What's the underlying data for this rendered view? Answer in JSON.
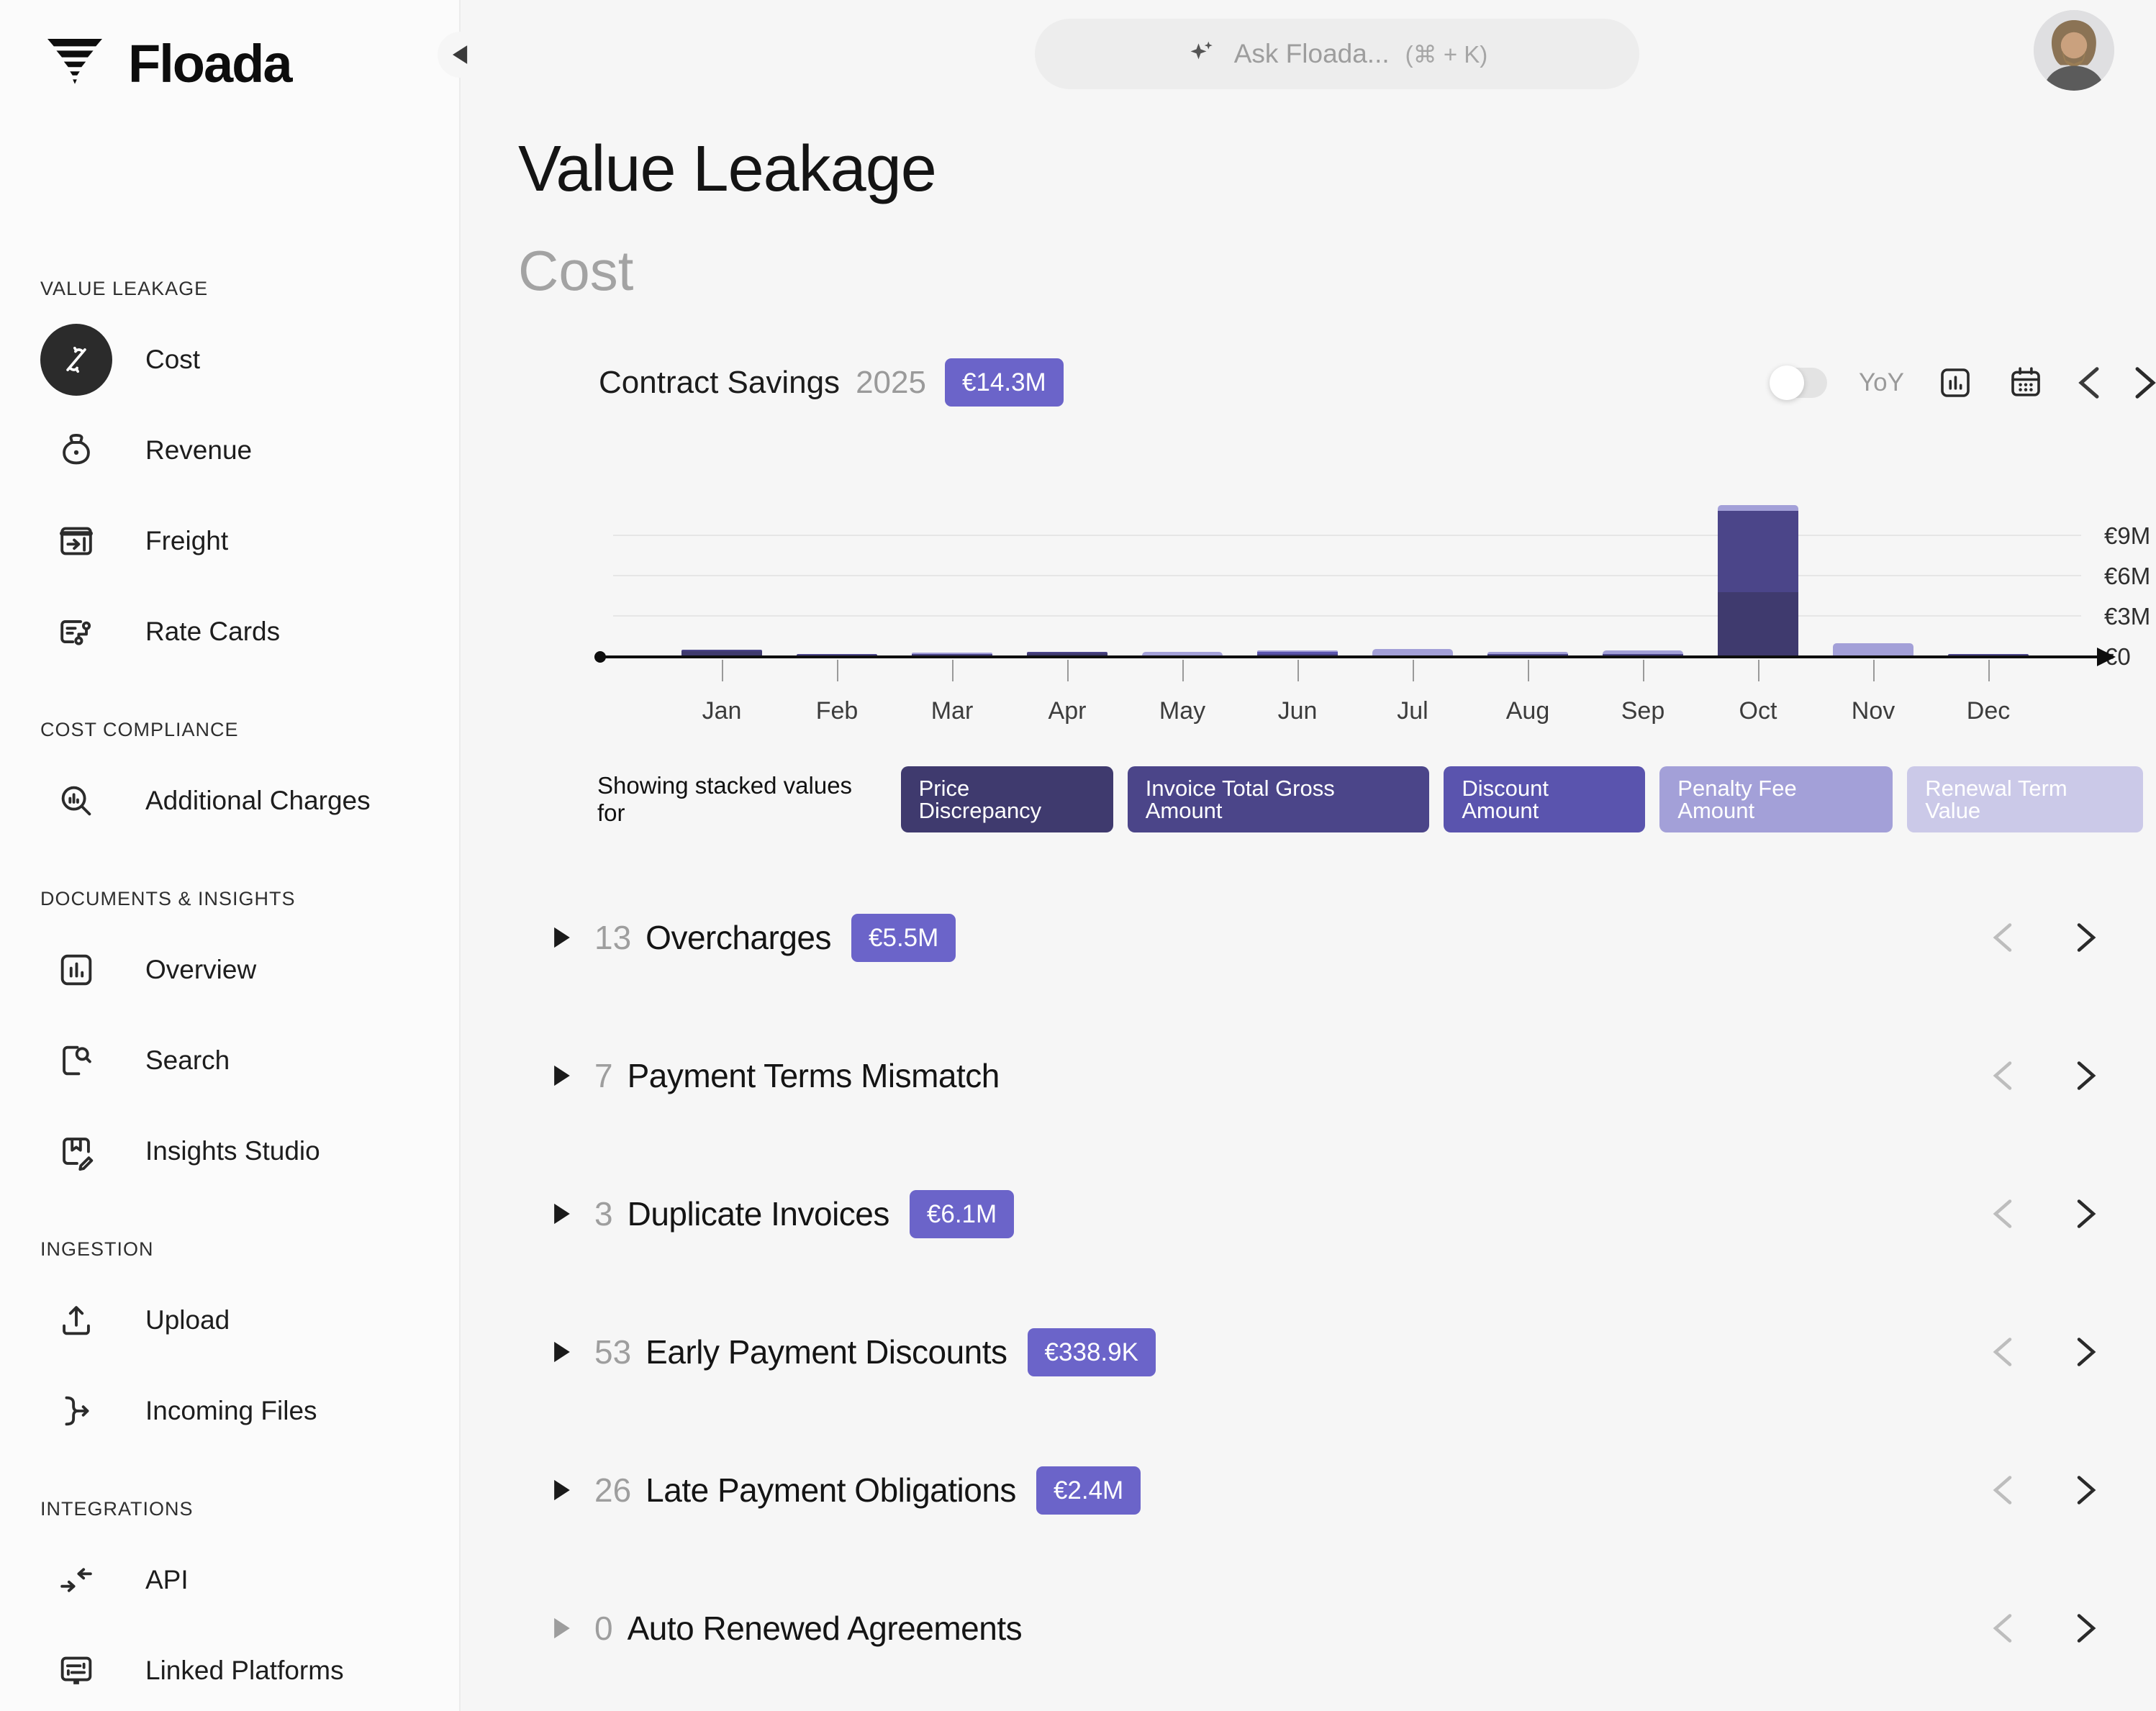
{
  "app": {
    "name": "Floada"
  },
  "topbar": {
    "ask_placeholder": "Ask Floada...",
    "shortcut": "(⌘ + K)"
  },
  "page": {
    "title": "Value Leakage",
    "subtitle": "Cost"
  },
  "sidebar": {
    "sections": [
      {
        "label": "VALUE LEAKAGE",
        "items": [
          {
            "label": "Cost",
            "icon": "cost-icon",
            "active": true
          },
          {
            "label": "Revenue",
            "icon": "revenue-icon"
          },
          {
            "label": "Freight",
            "icon": "freight-icon"
          },
          {
            "label": "Rate Cards",
            "icon": "rate-cards-icon"
          }
        ]
      },
      {
        "label": "COST COMPLIANCE",
        "items": [
          {
            "label": "Additional Charges",
            "icon": "additional-charges-icon"
          }
        ]
      },
      {
        "label": "DOCUMENTS & INSIGHTS",
        "items": [
          {
            "label": "Overview",
            "icon": "overview-icon"
          },
          {
            "label": "Search",
            "icon": "search-icon"
          },
          {
            "label": "Insights Studio",
            "icon": "insights-studio-icon"
          }
        ]
      },
      {
        "label": "INGESTION",
        "items": [
          {
            "label": "Upload",
            "icon": "upload-icon"
          },
          {
            "label": "Incoming Files",
            "icon": "incoming-files-icon"
          }
        ]
      },
      {
        "label": "INTEGRATIONS",
        "items": [
          {
            "label": "API",
            "icon": "api-icon"
          },
          {
            "label": "Linked Platforms",
            "icon": "linked-platforms-icon"
          }
        ]
      }
    ]
  },
  "chart_header": {
    "title": "Contract Savings",
    "year": "2025",
    "total_badge": "€14.3M",
    "yoy_label": "YoY"
  },
  "chart_data": {
    "type": "bar",
    "stacked": true,
    "title": "Contract Savings 2025",
    "unit": "€M",
    "categories": [
      "Jan",
      "Feb",
      "Mar",
      "Apr",
      "May",
      "Jun",
      "Jul",
      "Aug",
      "Sep",
      "Oct",
      "Nov",
      "Dec"
    ],
    "series": [
      {
        "name": "Price Discrepancy",
        "color": "#3f3a6e",
        "values": [
          0.3,
          0,
          0,
          0.15,
          0,
          0,
          0,
          0,
          0,
          4.7,
          0,
          0
        ]
      },
      {
        "name": "Invoice Total Gross Amount",
        "color": "#4b4589",
        "values": [
          0.05,
          0.02,
          0.03,
          0.05,
          0,
          0.05,
          0,
          0.05,
          0.05,
          6.05,
          0,
          0.02
        ]
      },
      {
        "name": "Discount Amount",
        "color": "#5a54ae",
        "values": [
          0,
          0,
          0,
          0,
          0,
          0.15,
          0,
          0,
          0,
          0,
          0,
          0
        ]
      },
      {
        "name": "Penalty Fee Amount",
        "color": "#a3a0d8",
        "values": [
          0,
          0,
          0.1,
          0,
          0.25,
          0.1,
          0.5,
          0.15,
          0.25,
          0.45,
          0.9,
          0
        ]
      },
      {
        "name": "Renewal Term Value",
        "color": "#cbc9e8",
        "values": [
          0,
          0,
          0,
          0,
          0,
          0,
          0,
          0,
          0,
          0,
          0,
          0
        ]
      }
    ],
    "yticks": [
      {
        "label": "€0",
        "value": 0
      },
      {
        "label": "€3M",
        "value": 3
      },
      {
        "label": "€6M",
        "value": 6
      },
      {
        "label": "€9M",
        "value": 9
      }
    ],
    "ylim": [
      0,
      11.6
    ],
    "legend_position": "bottom",
    "grid": true
  },
  "legend": {
    "prefix": "Showing stacked values for",
    "chips": [
      {
        "label": "Price Discrepancy",
        "color": "#3f3a6e"
      },
      {
        "label": "Invoice Total Gross Amount",
        "color": "#4b4589"
      },
      {
        "label": "Discount Amount",
        "color": "#5a54ae"
      },
      {
        "label": "Penalty Fee Amount",
        "color": "#a3a0d8"
      },
      {
        "label": "Renewal Term Value",
        "color": "#cbc9e8"
      }
    ]
  },
  "sections": [
    {
      "count": "13",
      "label": "Overcharges",
      "badge": "€5.5M",
      "muted": false
    },
    {
      "count": "7",
      "label": "Payment Terms Mismatch",
      "badge": null,
      "muted": false
    },
    {
      "count": "3",
      "label": "Duplicate Invoices",
      "badge": "€6.1M",
      "muted": false
    },
    {
      "count": "53",
      "label": "Early Payment Discounts",
      "badge": "€338.9K",
      "muted": false
    },
    {
      "count": "26",
      "label": "Late Payment Obligations",
      "badge": "€2.4M",
      "muted": false
    },
    {
      "count": "0",
      "label": "Auto Renewed Agreements",
      "badge": null,
      "muted": true
    }
  ],
  "colors": {
    "accent": "#6b64c9",
    "page_bg": "#f6f6f6",
    "sidebar_bg": "#fbfbfb",
    "pill_bg": "#ededed",
    "axis": "#0e0e0e",
    "gridline": "#e6e6e6"
  }
}
